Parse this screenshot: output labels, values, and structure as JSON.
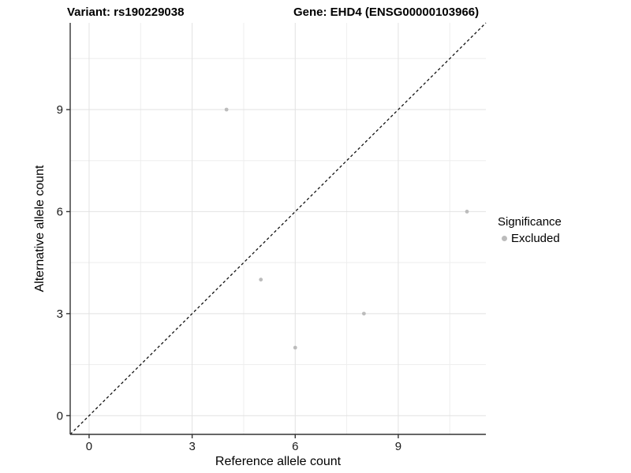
{
  "chart_data": {
    "type": "scatter",
    "title_left": "Variant: rs190229038",
    "title_right": "Gene: EHD4 (ENSG00000103966)",
    "xlabel": "Reference allele count",
    "ylabel": "Alternative allele count",
    "xlim": [
      -0.55,
      11.55
    ],
    "ylim": [
      -0.55,
      11.55
    ],
    "x_ticks": [
      0,
      3,
      6,
      9
    ],
    "y_ticks": [
      0,
      3,
      6,
      9
    ],
    "x_minor": [
      1.5,
      4.5,
      7.5,
      10.5
    ],
    "y_minor": [
      1.5,
      4.5,
      7.5,
      10.5
    ],
    "grid": true,
    "legend_position": "right",
    "series": [
      {
        "name": "Excluded",
        "color": "#bcbcbc",
        "points": [
          [
            4,
            9
          ],
          [
            5,
            4
          ],
          [
            6,
            2
          ],
          [
            8,
            3
          ],
          [
            11,
            6
          ]
        ]
      }
    ],
    "identity_line": {
      "slope": 1,
      "intercept": 0,
      "style": "dashed",
      "color": "#111111"
    },
    "legend": {
      "title": "Significance",
      "items": [
        {
          "label": "Excluded",
          "color": "#bcbcbc"
        }
      ]
    }
  },
  "colors": {
    "background": "#ffffff",
    "grid_major": "#e2e2e2",
    "grid_minor": "#eeeeee",
    "axis_line": "#333333",
    "tick_label": "#1a1a1a",
    "point": "#bcbcbc"
  }
}
